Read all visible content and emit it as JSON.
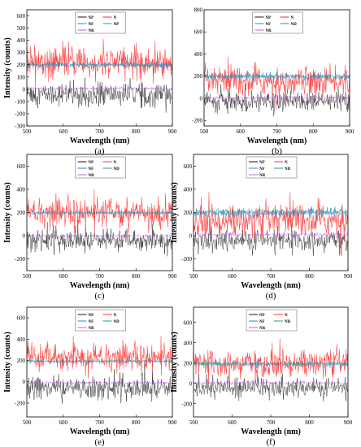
{
  "chart_data": [
    {
      "type": "line",
      "panel_label": "(a)",
      "xlabel": "Wavelength (nm)",
      "ylabel": "Intensity (counts)",
      "xlim": [
        500,
        900
      ],
      "ylim": [
        -300,
        650
      ],
      "xticks": [
        "500",
        "600",
        "700",
        "800",
        "900"
      ],
      "yticks": [
        "-300",
        "-200",
        "-100",
        "0",
        "100",
        "200",
        "300",
        "400",
        "500",
        "600"
      ],
      "ytick_values": [
        -300,
        -200,
        -100,
        0,
        100,
        200,
        300,
        400,
        500,
        600
      ],
      "legend_position": "top-center",
      "series": [
        {
          "name": "NP",
          "color": "#1a1a1a",
          "center": -40,
          "spread": 80
        },
        {
          "name": "N",
          "color": "#ff3333",
          "center": 220,
          "spread": 110
        },
        {
          "name": "NF",
          "color": "#2e86de",
          "center": 200,
          "spread": 20
        },
        {
          "name": "NP",
          "color": "#1aa37a",
          "center": 200,
          "spread": 15
        },
        {
          "name": "NR",
          "color": "#b760e6",
          "center": 5,
          "spread": 10
        }
      ]
    },
    {
      "type": "line",
      "panel_label": "(b)",
      "xlabel": "Wavelength (nm)",
      "ylabel": "",
      "xlim": [
        500,
        900
      ],
      "ylim": [
        -250,
        800
      ],
      "xticks": [
        "500",
        "600",
        "700",
        "800",
        "900"
      ],
      "yticks": [
        "-200",
        "0",
        "200",
        "400",
        "600",
        "800"
      ],
      "ytick_values": [
        -200,
        0,
        200,
        400,
        600,
        800
      ],
      "legend_position": "top-center",
      "series": [
        {
          "name": "NP",
          "color": "#1a1a1a",
          "center": -30,
          "spread": 75
        },
        {
          "name": "N",
          "color": "#ff3333",
          "center": 150,
          "spread": 110
        },
        {
          "name": "NF",
          "color": "#2e86de",
          "center": 195,
          "spread": 22
        },
        {
          "name": "ND",
          "color": "#1aa37a",
          "center": 200,
          "spread": 18
        },
        {
          "name": "NR",
          "color": "#b760e6",
          "center": 5,
          "spread": 12
        }
      ]
    },
    {
      "type": "line",
      "panel_label": "(c)",
      "xlabel": "Wavelength (nm)",
      "ylabel": "Intensity (counts)",
      "xlim": [
        500,
        900
      ],
      "ylim": [
        -300,
        700
      ],
      "xticks": [
        "500",
        "600",
        "700",
        "800",
        "900"
      ],
      "yticks": [
        "-200",
        "0",
        "200",
        "400",
        "600"
      ],
      "ytick_values": [
        -200,
        0,
        200,
        400,
        600
      ],
      "legend_position": "top-center",
      "series": [
        {
          "name": "NP",
          "color": "#1a1a1a",
          "center": -40,
          "spread": 75
        },
        {
          "name": "N",
          "color": "#ff3333",
          "center": 200,
          "spread": 110
        },
        {
          "name": "NF",
          "color": "#2e86de",
          "center": 195,
          "spread": 12
        },
        {
          "name": "ND",
          "color": "#1aa37a",
          "center": 200,
          "spread": 8
        },
        {
          "name": "NR",
          "color": "#b760e6",
          "center": 0,
          "spread": 10
        }
      ]
    },
    {
      "type": "line",
      "panel_label": "(d)",
      "xlabel": "Wavelength (nm)",
      "ylabel": "Intensity (counts)",
      "xlim": [
        500,
        900
      ],
      "ylim": [
        -300,
        700
      ],
      "xticks": [
        "500",
        "600",
        "700",
        "800",
        "900"
      ],
      "yticks": [
        "-200",
        "0",
        "200",
        "400",
        "600"
      ],
      "ytick_values": [
        -200,
        0,
        200,
        400,
        600
      ],
      "legend_position": "top-center",
      "series": [
        {
          "name": "NP",
          "color": "#1a1a1a",
          "center": -40,
          "spread": 80
        },
        {
          "name": "N",
          "color": "#ff3333",
          "center": 130,
          "spread": 120
        },
        {
          "name": "NF",
          "color": "#2e86de",
          "center": 195,
          "spread": 28
        },
        {
          "name": "ND",
          "color": "#1aa37a",
          "center": 205,
          "spread": 22
        },
        {
          "name": "NR",
          "color": "#b760e6",
          "center": 10,
          "spread": 15
        }
      ]
    },
    {
      "type": "line",
      "panel_label": "(e)",
      "xlabel": "Wavelength (nm)",
      "ylabel": "Intensity (counts)",
      "xlim": [
        500,
        900
      ],
      "ylim": [
        -330,
        700
      ],
      "xticks": [
        "500",
        "600",
        "700",
        "800",
        "900"
      ],
      "yticks": [
        "-200",
        "0",
        "200",
        "400",
        "600"
      ],
      "ytick_values": [
        -200,
        0,
        200,
        400,
        600
      ],
      "legend_position": "top-center",
      "series": [
        {
          "name": "NP",
          "color": "#1a1a1a",
          "center": -60,
          "spread": 85
        },
        {
          "name": "N",
          "color": "#ff3333",
          "center": 230,
          "spread": 110
        },
        {
          "name": "NF",
          "color": "#2e86de",
          "center": 190,
          "spread": 12
        },
        {
          "name": "ND",
          "color": "#1aa37a",
          "center": 195,
          "spread": 8
        },
        {
          "name": "NR",
          "color": "#b760e6",
          "center": -10,
          "spread": 10
        }
      ]
    },
    {
      "type": "line",
      "panel_label": "(f)",
      "xlabel": "Wavelength (nm)",
      "ylabel": "Intensity (counts)",
      "xlim": [
        500,
        900
      ],
      "ylim": [
        -330,
        750
      ],
      "xticks": [
        "500",
        "600",
        "700",
        "800",
        "900"
      ],
      "yticks": [
        "-200",
        "0",
        "200",
        "400",
        "600"
      ],
      "ytick_values": [
        -200,
        0,
        200,
        400,
        600
      ],
      "legend_position": "top-center",
      "series": [
        {
          "name": "NP",
          "color": "#1a1a1a",
          "center": -40,
          "spread": 85
        },
        {
          "name": "N",
          "color": "#ff3333",
          "center": 200,
          "spread": 120
        },
        {
          "name": "NF",
          "color": "#2e86de",
          "center": 190,
          "spread": 22
        },
        {
          "name": "ND",
          "color": "#1aa37a",
          "center": 195,
          "spread": 18
        },
        {
          "name": "NR",
          "color": "#b760e6",
          "center": 5,
          "spread": 12
        }
      ]
    }
  ]
}
